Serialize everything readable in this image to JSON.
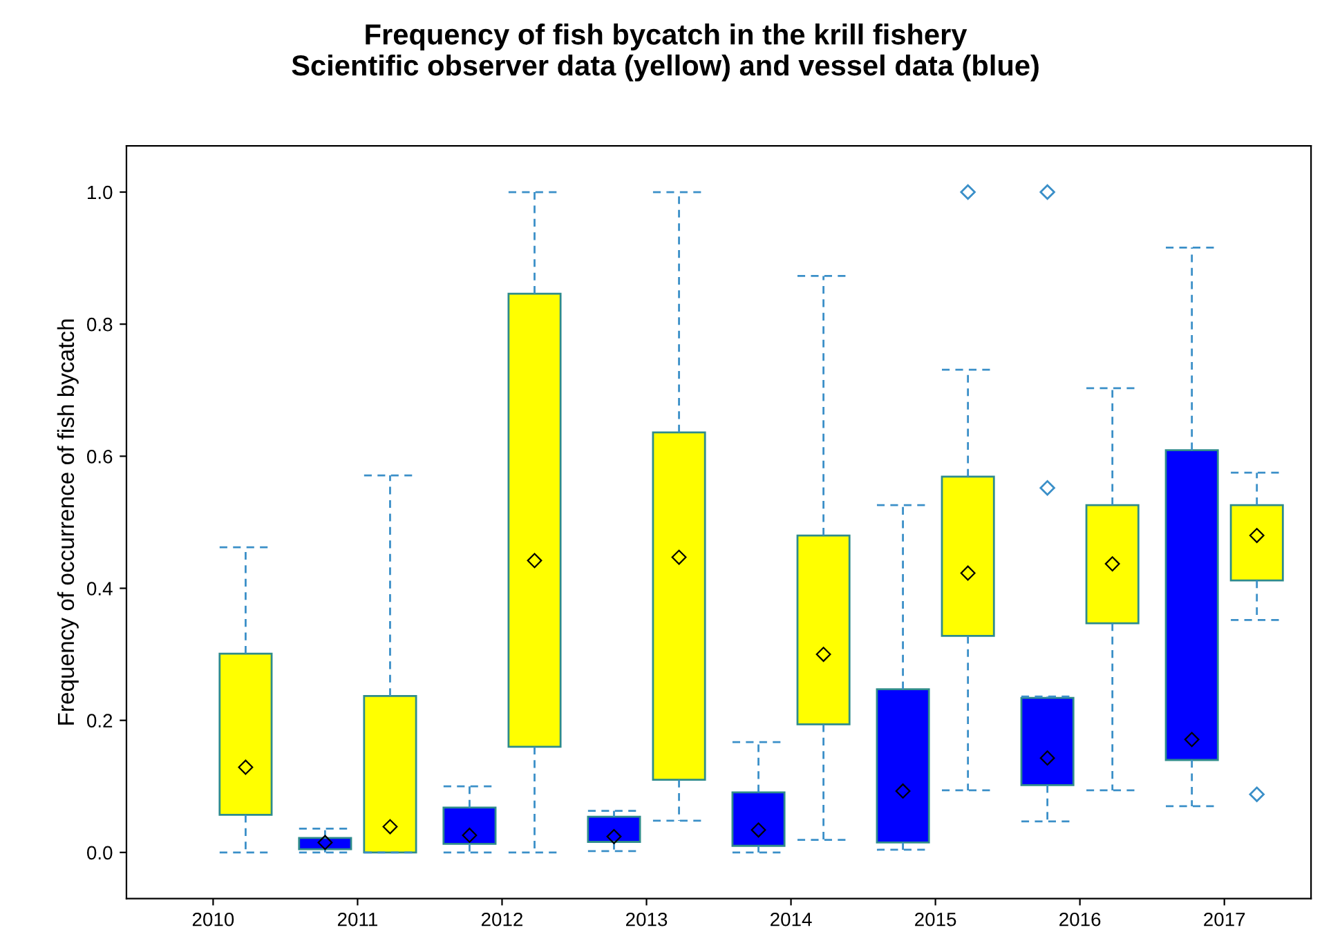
{
  "chart_data": {
    "type": "box",
    "title": "Frequency of fish bycatch in the krill fishery\nScientific observer data (yellow) and vessel data (blue)",
    "ylabel": "Frequency of occurrence of fish bycatch",
    "categories": [
      "2010",
      "2011",
      "2012",
      "2013",
      "2014",
      "2015",
      "2016",
      "2017"
    ],
    "ylim": [
      -0.07,
      1.07
    ],
    "yticks": [
      {
        "value": 0,
        "label": "0.0"
      },
      {
        "value": 0.2,
        "label": "0.2"
      },
      {
        "value": 0.4,
        "label": "0.4"
      },
      {
        "value": 0.6,
        "label": "0.6"
      },
      {
        "value": 0.8,
        "label": "0.8"
      },
      {
        "value": 1,
        "label": "1.0"
      }
    ],
    "grid": false,
    "legend": false,
    "marker": "diamond",
    "series": [
      {
        "color": "#0000ff",
        "boxes": [
          null,
          {
            "low": 0.0,
            "q1": 0.005,
            "median": 0.015,
            "q3": 0.022,
            "high": 0.036
          },
          {
            "low": 0.0,
            "q1": 0.013,
            "median": 0.026,
            "q3": 0.068,
            "high": 0.1
          },
          {
            "low": 0.002,
            "q1": 0.016,
            "median": 0.024,
            "q3": 0.054,
            "high": 0.063
          },
          {
            "low": 0.0,
            "q1": 0.01,
            "median": 0.034,
            "q3": 0.091,
            "high": 0.167
          },
          {
            "low": 0.004,
            "q1": 0.015,
            "median": 0.093,
            "q3": 0.247,
            "high": 0.526
          },
          {
            "low": 0.047,
            "q1": 0.102,
            "median": 0.143,
            "q3": 0.234,
            "high": 0.236,
            "outliers": [
              0.552,
              1.0
            ]
          },
          {
            "low": 0.07,
            "q1": 0.14,
            "median": 0.171,
            "q3": 0.609,
            "high": 0.916
          }
        ]
      },
      {
        "color": "#ffff00",
        "boxes": [
          {
            "low": 0.0,
            "q1": 0.057,
            "median": 0.129,
            "q3": 0.301,
            "high": 0.462
          },
          {
            "low": 0.0,
            "q1": 0.0,
            "median": 0.039,
            "q3": 0.237,
            "high": 0.571
          },
          {
            "low": 0.0,
            "q1": 0.16,
            "median": 0.442,
            "q3": 0.846,
            "high": 1.0
          },
          {
            "low": 0.048,
            "q1": 0.11,
            "median": 0.447,
            "q3": 0.636,
            "high": 1.0
          },
          {
            "low": 0.019,
            "q1": 0.194,
            "median": 0.3,
            "q3": 0.48,
            "high": 0.873
          },
          {
            "low": 0.094,
            "q1": 0.328,
            "median": 0.423,
            "q3": 0.569,
            "high": 0.731,
            "outliers": [
              1.0
            ]
          },
          {
            "low": 0.094,
            "q1": 0.347,
            "median": 0.437,
            "q3": 0.526,
            "high": 0.703
          },
          {
            "low": 0.352,
            "q1": 0.412,
            "median": 0.48,
            "q3": 0.526,
            "high": 0.575,
            "outliers": [
              0.088
            ]
          }
        ]
      }
    ]
  }
}
